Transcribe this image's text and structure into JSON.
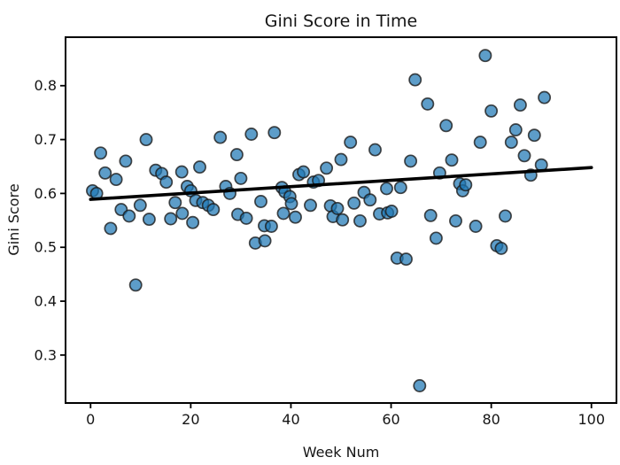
{
  "window": {
    "background_color": "#ffffff"
  },
  "chart_data": {
    "type": "scatter",
    "title": "Gini Score in Time",
    "xlabel": "Week Num",
    "ylabel": "Gini Score",
    "xlim": [
      -5,
      105
    ],
    "ylim": [
      0.211,
      0.89
    ],
    "x_ticks": [
      0,
      20,
      40,
      60,
      80,
      100
    ],
    "x_tick_labels": [
      "0",
      "20",
      "40",
      "60",
      "80",
      "100"
    ],
    "y_ticks": [
      0.3,
      0.4,
      0.5,
      0.6,
      0.7,
      0.8
    ],
    "y_tick_labels": [
      "0.3",
      "0.4",
      "0.5",
      "0.6",
      "0.7",
      "0.8"
    ],
    "grid": false,
    "legend": null,
    "marker": {
      "fill": "#1f77b4",
      "fill_opacity": 0.72,
      "edge": "#1c1c1c",
      "edge_opacity": 0.8,
      "edge_width": 1.7,
      "radius": 6.6
    },
    "axis_color": "#000000",
    "trend_line": {
      "x": [
        0,
        100
      ],
      "y": [
        0.589,
        0.648
      ],
      "color": "#000000",
      "width": 3.6
    },
    "points": [
      [
        0.4,
        0.605
      ],
      [
        1.2,
        0.6
      ],
      [
        2.0,
        0.675
      ],
      [
        2.9,
        0.638
      ],
      [
        4.0,
        0.535
      ],
      [
        5.1,
        0.626
      ],
      [
        6.1,
        0.57
      ],
      [
        7.0,
        0.66
      ],
      [
        7.7,
        0.558
      ],
      [
        9.0,
        0.43
      ],
      [
        9.9,
        0.578
      ],
      [
        11.1,
        0.7
      ],
      [
        11.7,
        0.552
      ],
      [
        13.0,
        0.643
      ],
      [
        14.2,
        0.637
      ],
      [
        15.1,
        0.621
      ],
      [
        16.0,
        0.553
      ],
      [
        16.9,
        0.583
      ],
      [
        18.2,
        0.64
      ],
      [
        18.3,
        0.563
      ],
      [
        19.3,
        0.613
      ],
      [
        20.0,
        0.605
      ],
      [
        20.4,
        0.546
      ],
      [
        21.0,
        0.587
      ],
      [
        21.8,
        0.649
      ],
      [
        22.4,
        0.583
      ],
      [
        23.5,
        0.578
      ],
      [
        24.5,
        0.57
      ],
      [
        25.9,
        0.704
      ],
      [
        27.0,
        0.613
      ],
      [
        27.8,
        0.6
      ],
      [
        29.2,
        0.672
      ],
      [
        29.4,
        0.561
      ],
      [
        30.0,
        0.628
      ],
      [
        31.1,
        0.554
      ],
      [
        32.1,
        0.71
      ],
      [
        32.9,
        0.508
      ],
      [
        34.0,
        0.585
      ],
      [
        34.7,
        0.54
      ],
      [
        34.8,
        0.512
      ],
      [
        36.1,
        0.539
      ],
      [
        36.7,
        0.713
      ],
      [
        38.2,
        0.611
      ],
      [
        38.5,
        0.563
      ],
      [
        38.8,
        0.603
      ],
      [
        39.8,
        0.594
      ],
      [
        40.1,
        0.581
      ],
      [
        40.9,
        0.556
      ],
      [
        41.6,
        0.635
      ],
      [
        42.5,
        0.64
      ],
      [
        43.9,
        0.578
      ],
      [
        44.5,
        0.621
      ],
      [
        45.5,
        0.624
      ],
      [
        47.1,
        0.647
      ],
      [
        47.9,
        0.577
      ],
      [
        48.4,
        0.557
      ],
      [
        49.3,
        0.572
      ],
      [
        50.0,
        0.663
      ],
      [
        50.3,
        0.551
      ],
      [
        51.9,
        0.695
      ],
      [
        52.6,
        0.582
      ],
      [
        53.8,
        0.549
      ],
      [
        54.6,
        0.602
      ],
      [
        55.8,
        0.588
      ],
      [
        56.8,
        0.681
      ],
      [
        57.7,
        0.562
      ],
      [
        59.1,
        0.609
      ],
      [
        59.3,
        0.564
      ],
      [
        60.1,
        0.567
      ],
      [
        61.2,
        0.48
      ],
      [
        61.9,
        0.611
      ],
      [
        63.0,
        0.478
      ],
      [
        63.9,
        0.66
      ],
      [
        64.8,
        0.811
      ],
      [
        65.7,
        0.243
      ],
      [
        67.3,
        0.766
      ],
      [
        67.9,
        0.559
      ],
      [
        69.0,
        0.517
      ],
      [
        69.7,
        0.638
      ],
      [
        71.0,
        0.726
      ],
      [
        72.1,
        0.662
      ],
      [
        72.9,
        0.549
      ],
      [
        73.7,
        0.618
      ],
      [
        74.3,
        0.605
      ],
      [
        74.9,
        0.616
      ],
      [
        76.9,
        0.539
      ],
      [
        77.8,
        0.695
      ],
      [
        78.8,
        0.856
      ],
      [
        80.0,
        0.753
      ],
      [
        81.1,
        0.503
      ],
      [
        82.0,
        0.498
      ],
      [
        82.8,
        0.558
      ],
      [
        84.0,
        0.695
      ],
      [
        84.9,
        0.718
      ],
      [
        85.8,
        0.764
      ],
      [
        86.6,
        0.67
      ],
      [
        87.9,
        0.634
      ],
      [
        88.6,
        0.708
      ],
      [
        90.0,
        0.653
      ],
      [
        90.6,
        0.778
      ]
    ]
  }
}
